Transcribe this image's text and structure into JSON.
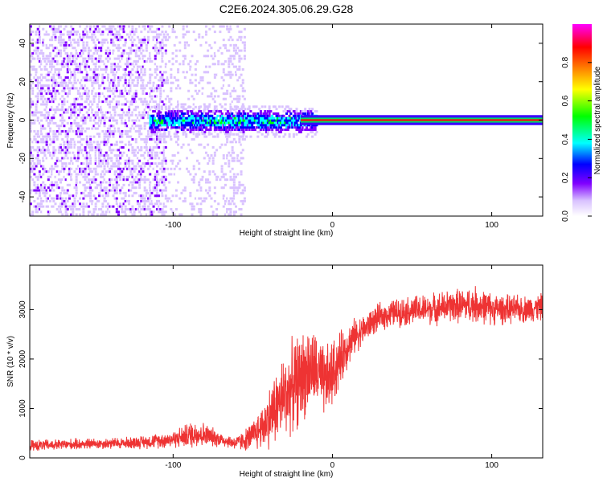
{
  "title": "C2E6.2024.305.06.29.G28",
  "chart_data": [
    {
      "type": "heatmap",
      "xlabel": "Height of straight line (km)",
      "ylabel": "Frequency (Hz)",
      "xlim": [
        -190,
        132
      ],
      "ylim": [
        -50,
        50
      ],
      "x_ticks": [
        -100,
        0,
        100
      ],
      "x_tick_labels": [
        "-100",
        "0",
        "100"
      ],
      "y_ticks": [
        -40,
        -20,
        0,
        20,
        40
      ],
      "y_tick_labels": [
        "-40",
        "-20",
        "0",
        "20",
        "40"
      ],
      "grid": false,
      "colorbar": {
        "label": "Normalized spectral amplitude",
        "range": [
          0,
          1
        ],
        "ticks": [
          "0.0",
          "0.2",
          "0.4",
          "0.6",
          "0.8"
        ],
        "colors": [
          "#ffffff",
          "#8000ff",
          "#0000ff",
          "#00ffff",
          "#00ff00",
          "#ffff00",
          "#ff8000",
          "#ff0000",
          "#ff00ff"
        ]
      },
      "features": {
        "noise_region_x": [
          -190,
          -55
        ],
        "cluster_region_x": [
          -115,
          -10
        ],
        "line_region_x": [
          -20,
          132
        ],
        "line_frequency": 0
      }
    },
    {
      "type": "line",
      "xlabel": "Height of straight line (km)",
      "ylabel": "SNR (10 * v/v)",
      "xlim": [
        -190,
        132
      ],
      "ylim": [
        0,
        3900
      ],
      "x_ticks": [
        -100,
        0,
        100
      ],
      "x_tick_labels": [
        "-100",
        "0",
        "100"
      ],
      "y_ticks": [
        0,
        1000,
        2000,
        3000
      ],
      "y_tick_labels": [
        "0",
        "1000",
        "2000",
        "3000"
      ],
      "grid": false,
      "series": [
        {
          "color": "#ee3333",
          "x": [
            -190,
            -175,
            -160,
            -145,
            -130,
            -115,
            -100,
            -85,
            -75,
            -65,
            -60,
            -55,
            -50,
            -45,
            -40,
            -35,
            -30,
            -25,
            -20,
            -15,
            -10,
            -5,
            0,
            5,
            10,
            15,
            20,
            25,
            30,
            35,
            40,
            50,
            60,
            70,
            80,
            90,
            100,
            110,
            120,
            132
          ],
          "values": [
            250,
            260,
            280,
            290,
            300,
            330,
            380,
            500,
            420,
            330,
            300,
            360,
            450,
            600,
            800,
            1050,
            1250,
            1450,
            1600,
            1800,
            1750,
            1500,
            1700,
            2000,
            2300,
            2500,
            2600,
            2750,
            2850,
            2900,
            2950,
            2980,
            3000,
            3050,
            3080,
            3100,
            3020,
            3000,
            3010,
            3050
          ],
          "noise_amplitude": [
            130,
            130,
            130,
            130,
            140,
            160,
            200,
            350,
            220,
            150,
            180,
            250,
            350,
            500,
            700,
            900,
            1000,
            1050,
            1100,
            1000,
            900,
            850,
            800,
            650,
            500,
            400,
            350,
            330,
            320,
            320,
            330,
            350,
            360,
            380,
            400,
            430,
            380,
            340,
            320,
            320
          ]
        }
      ]
    }
  ]
}
